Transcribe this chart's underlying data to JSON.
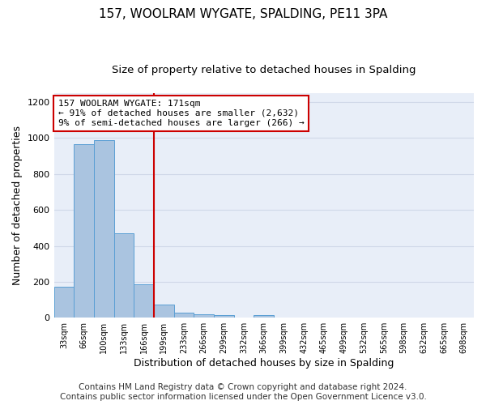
{
  "title": "157, WOOLRAM WYGATE, SPALDING, PE11 3PA",
  "subtitle": "Size of property relative to detached houses in Spalding",
  "xlabel": "Distribution of detached houses by size in Spalding",
  "ylabel": "Number of detached properties",
  "categories": [
    "33sqm",
    "66sqm",
    "100sqm",
    "133sqm",
    "166sqm",
    "199sqm",
    "233sqm",
    "266sqm",
    "299sqm",
    "332sqm",
    "366sqm",
    "399sqm",
    "432sqm",
    "465sqm",
    "499sqm",
    "532sqm",
    "565sqm",
    "598sqm",
    "632sqm",
    "665sqm",
    "698sqm"
  ],
  "values": [
    172,
    968,
    990,
    468,
    185,
    75,
    28,
    20,
    14,
    0,
    14,
    0,
    0,
    0,
    0,
    0,
    0,
    0,
    0,
    0,
    0
  ],
  "bar_color": "#aac4e0",
  "bar_edge_color": "#5a9fd4",
  "vline_x_index": 4.5,
  "annotation_text": "157 WOOLRAM WYGATE: 171sqm\n← 91% of detached houses are smaller (2,632)\n9% of semi-detached houses are larger (266) →",
  "annotation_box_color": "#ffffff",
  "annotation_box_edge_color": "#cc0000",
  "vline_color": "#cc0000",
  "ylim": [
    0,
    1250
  ],
  "yticks": [
    0,
    200,
    400,
    600,
    800,
    1000,
    1200
  ],
  "grid_color": "#d0d8e8",
  "background_color": "#e8eef8",
  "footer_text": "Contains HM Land Registry data © Crown copyright and database right 2024.\nContains public sector information licensed under the Open Government Licence v3.0.",
  "title_fontsize": 11,
  "subtitle_fontsize": 9.5,
  "xlabel_fontsize": 9,
  "ylabel_fontsize": 9,
  "tick_fontsize": 7,
  "annotation_fontsize": 8,
  "footer_fontsize": 7.5
}
